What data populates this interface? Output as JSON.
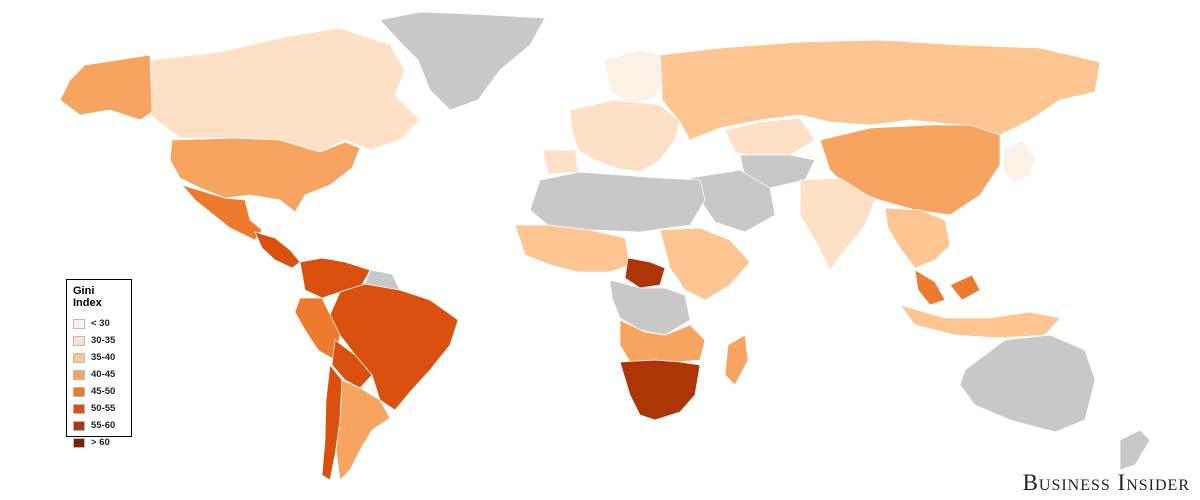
{
  "legend": {
    "title": "Gini Index",
    "items": [
      {
        "label": "< 30",
        "color": "#fdf0e4"
      },
      {
        "label": "30-35",
        "color": "#fde0c5"
      },
      {
        "label": "35-40",
        "color": "#fcc592"
      },
      {
        "label": "40-45",
        "color": "#f6a460"
      },
      {
        "label": "45-50",
        "color": "#ee7a2e"
      },
      {
        "label": "50-55",
        "color": "#d9500f"
      },
      {
        "label": "55-60",
        "color": "#ad3506"
      },
      {
        "label": "> 60",
        "color": "#7a2203"
      }
    ]
  },
  "no_data_color": "#c8c8c8",
  "brand": "Business Insider",
  "regions": [
    {
      "name": "greenland",
      "bucket": "none"
    },
    {
      "name": "canada",
      "bucket": "30-35"
    },
    {
      "name": "alaska",
      "bucket": "40-45"
    },
    {
      "name": "usa",
      "bucket": "40-45"
    },
    {
      "name": "mexico",
      "bucket": "45-50"
    },
    {
      "name": "central-america",
      "bucket": "50-55"
    },
    {
      "name": "colombia-venezuela",
      "bucket": "50-55"
    },
    {
      "name": "brazil",
      "bucket": "50-55"
    },
    {
      "name": "peru",
      "bucket": "45-50"
    },
    {
      "name": "bolivia",
      "bucket": "50-55"
    },
    {
      "name": "argentina",
      "bucket": "40-45"
    },
    {
      "name": "chile",
      "bucket": "50-55"
    },
    {
      "name": "guianas",
      "bucket": "none"
    },
    {
      "name": "russia",
      "bucket": "35-40"
    },
    {
      "name": "europe",
      "bucket": "30-35"
    },
    {
      "name": "scandinavia",
      "bucket": "< 30"
    },
    {
      "name": "iberia",
      "bucket": "30-35"
    },
    {
      "name": "north-africa",
      "bucket": "none"
    },
    {
      "name": "middle-east",
      "bucket": "none"
    },
    {
      "name": "west-africa",
      "bucket": "35-40"
    },
    {
      "name": "central-african-republic",
      "bucket": "55-60"
    },
    {
      "name": "east-africa",
      "bucket": "35-40"
    },
    {
      "name": "congo-region",
      "bucket": "none"
    },
    {
      "name": "angola-zambia",
      "bucket": "40-45"
    },
    {
      "name": "southern-africa",
      "bucket": "55-60"
    },
    {
      "name": "madagascar",
      "bucket": "40-45"
    },
    {
      "name": "kazakhstan",
      "bucket": "30-35"
    },
    {
      "name": "central-asia",
      "bucket": "none"
    },
    {
      "name": "india",
      "bucket": "30-35"
    },
    {
      "name": "china",
      "bucket": "40-45"
    },
    {
      "name": "japan-korea",
      "bucket": "< 30"
    },
    {
      "name": "southeast-asia",
      "bucket": "35-40"
    },
    {
      "name": "malaysia",
      "bucket": "45-50"
    },
    {
      "name": "indonesia",
      "bucket": "35-40"
    },
    {
      "name": "australia",
      "bucket": "none"
    },
    {
      "name": "new-zealand",
      "bucket": "none"
    }
  ]
}
